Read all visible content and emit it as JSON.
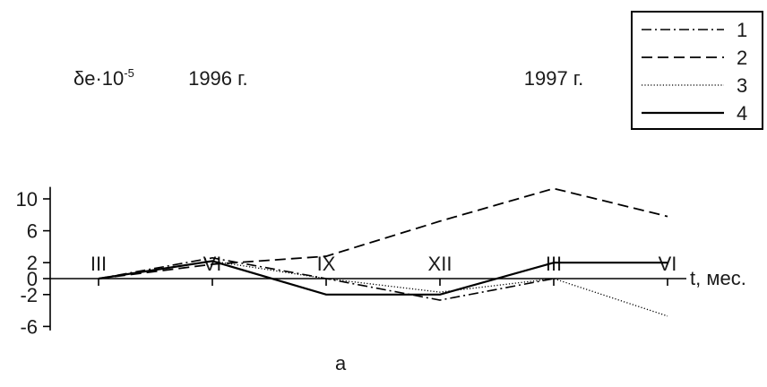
{
  "chart_data": {
    "type": "line",
    "ylabel_base": "δe·10",
    "ylabel_exp": "-5",
    "xlabel": "t, мес.",
    "caption": "а",
    "year_labels": [
      {
        "text": "1996 г.",
        "at_category": 1.05
      },
      {
        "text": "1997 г.",
        "at_category": 4.0
      }
    ],
    "categories": [
      "III",
      "VI",
      "IX",
      "XII",
      "III",
      "VI"
    ],
    "x": [
      0,
      1,
      2,
      3,
      4,
      5
    ],
    "yticks": [
      10,
      6,
      2,
      0,
      -2,
      -6
    ],
    "ylim": [
      -6.5,
      11.5
    ],
    "legend_position": "top-right",
    "series": [
      {
        "name": "1",
        "style": "dash-dot",
        "x": [
          0,
          1,
          2,
          3,
          4
        ],
        "values": [
          0,
          2.6,
          0,
          -2.7,
          0
        ]
      },
      {
        "name": "2",
        "style": "dashed",
        "x": [
          0,
          1,
          2,
          3,
          4,
          5
        ],
        "values": [
          0,
          1.8,
          2.8,
          7.2,
          11.3,
          7.8
        ]
      },
      {
        "name": "3",
        "style": "dotted",
        "x": [
          0,
          1,
          2,
          3,
          4,
          5
        ],
        "values": [
          0,
          2.2,
          0,
          -1.7,
          0,
          -4.7
        ]
      },
      {
        "name": "4",
        "style": "solid",
        "x": [
          0,
          1,
          2,
          2.5,
          3,
          4,
          5
        ],
        "values": [
          0,
          2.2,
          -2,
          -2,
          -2,
          2,
          2
        ]
      }
    ]
  }
}
